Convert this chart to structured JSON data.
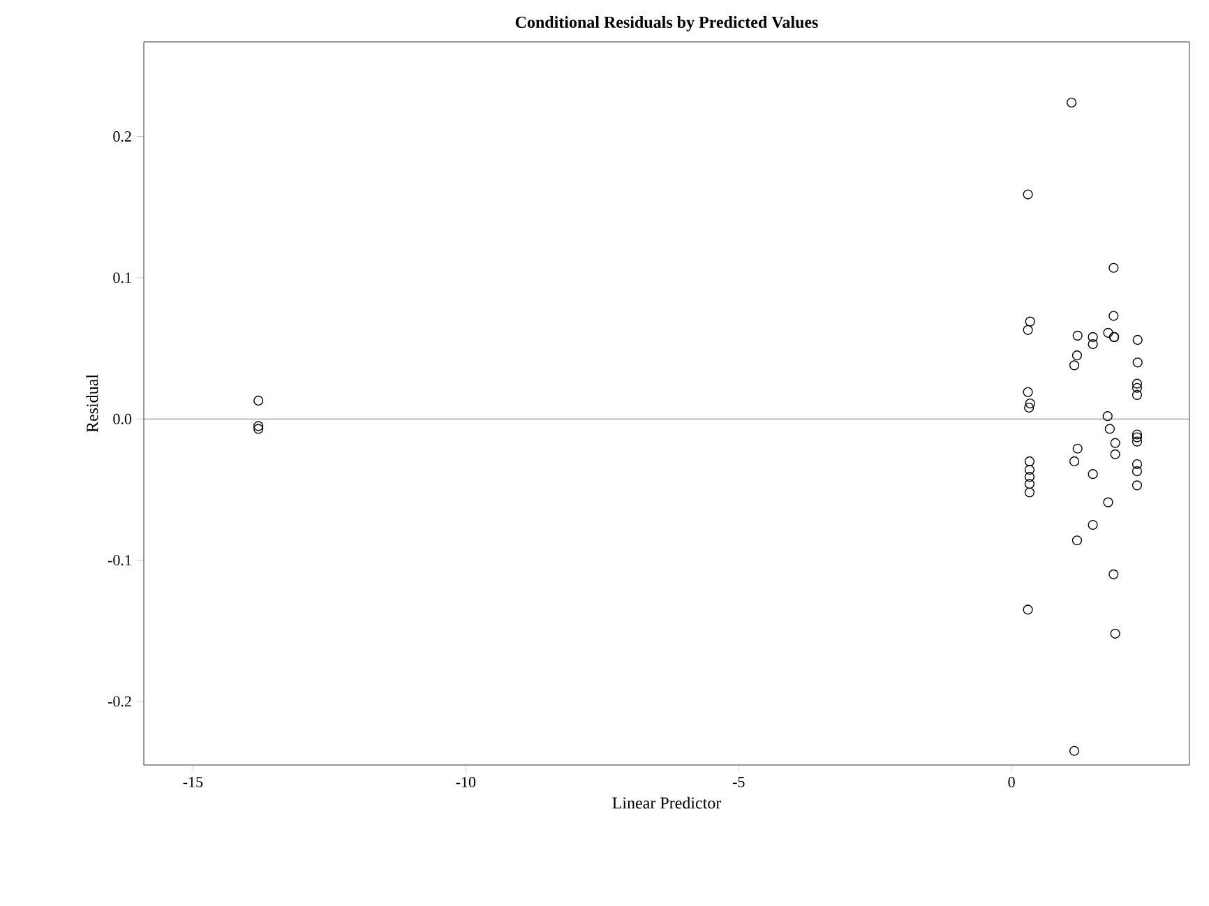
{
  "chart_data": {
    "type": "scatter",
    "title": "Conditional Residuals by Predicted Values",
    "xlabel": "Linear Predictor",
    "ylabel": "Residual",
    "xlim": [
      -15.9,
      3.26
    ],
    "ylim": [
      -0.245,
      0.267
    ],
    "xticks": [
      -15,
      -10,
      -5,
      0
    ],
    "yticks": [
      {
        "value": -0.2,
        "label": "-0.2"
      },
      {
        "value": -0.1,
        "label": "-0.1"
      },
      {
        "value": 0,
        "label": "0.0"
      },
      {
        "value": 0.1,
        "label": "0.1"
      },
      {
        "value": 0.2,
        "label": "0.2"
      }
    ],
    "grid": false,
    "marker": "circle",
    "ref_lines": [
      {
        "axis": "y",
        "value": 0,
        "color": "#808080"
      }
    ],
    "series": [
      {
        "color": "#000000",
        "x": [
          -13.8,
          -13.8,
          -13.8,
          1.1,
          0.3,
          1.87,
          0.34,
          0.3,
          1.87,
          1.21,
          1.49,
          1.49,
          1.77,
          1.88,
          1.88,
          2.31,
          1.2,
          1.15,
          2.31,
          2.3,
          2.3,
          2.3,
          0.3,
          0.34,
          0.32,
          1.76,
          1.8,
          2.3,
          2.3,
          2.3,
          1.9,
          1.9,
          1.21,
          1.15,
          0.33,
          0.33,
          0.33,
          0.33,
          0.33,
          1.49,
          2.3,
          2.3,
          2.3,
          1.77,
          1.49,
          1.2,
          1.87,
          0.3,
          1.9,
          1.15
        ],
        "values": [
          0.013,
          -0.005,
          -0.007,
          0.224,
          0.159,
          0.107,
          0.069,
          0.063,
          0.073,
          0.059,
          0.058,
          0.053,
          0.061,
          0.058,
          0.058,
          0.056,
          0.045,
          0.038,
          0.04,
          0.025,
          0.022,
          0.017,
          0.019,
          0.011,
          0.008,
          0.002,
          -0.007,
          -0.011,
          -0.013,
          -0.016,
          -0.017,
          -0.025,
          -0.021,
          -0.03,
          -0.03,
          -0.036,
          -0.041,
          -0.046,
          -0.052,
          -0.039,
          -0.032,
          -0.037,
          -0.047,
          -0.059,
          -0.075,
          -0.086,
          -0.11,
          -0.135,
          -0.152,
          -0.235
        ]
      }
    ]
  }
}
